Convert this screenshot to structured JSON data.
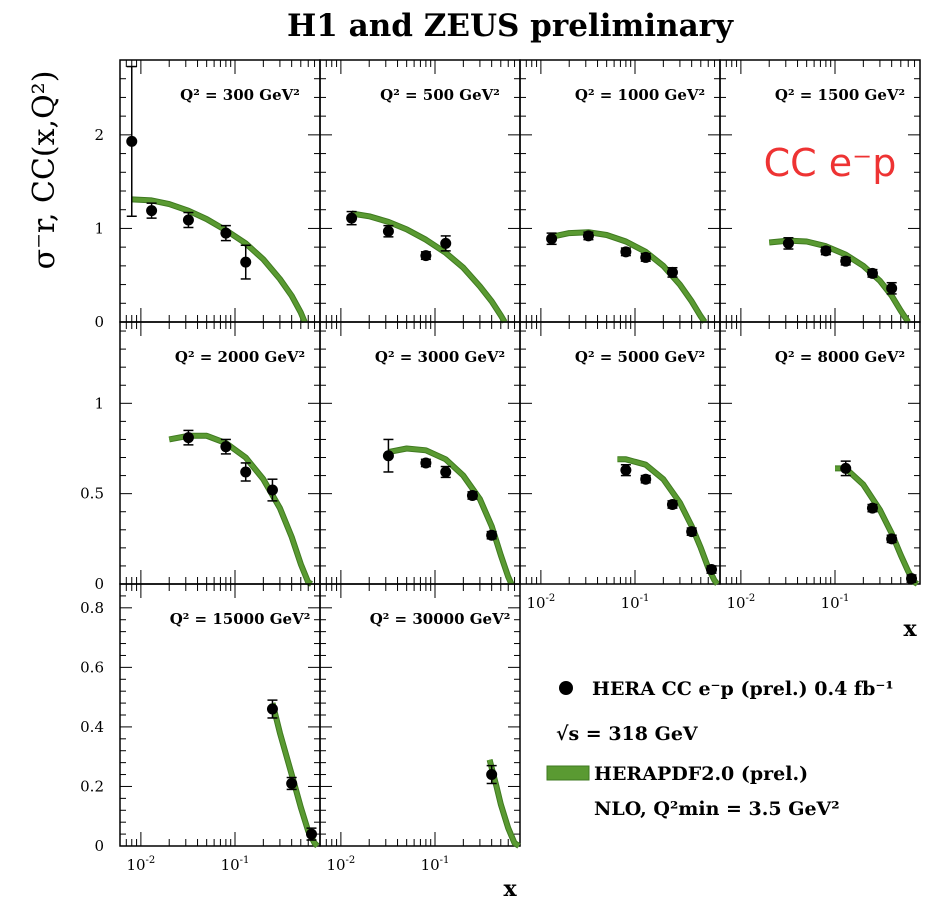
{
  "title": "H1 and ZEUS preliminary",
  "y_axis_label": "σ⁻r, CC(x,Q²)",
  "x_axis_label": "x",
  "process_label": "CC e⁻p",
  "legend": {
    "data_label": "HERA CC e⁻p (prel.) 0.4 fb⁻¹",
    "energy_label": "√s = 318 GeV",
    "fit_label": "HERAPDF2.0 (prel.)",
    "fit_sub_label": "NLO, Q²min = 3.5 GeV²"
  },
  "colors": {
    "fit": "#5a9a32",
    "fit_dark": "#3f7a20",
    "data": "#000000",
    "process_label": "#ee3333"
  },
  "chart_data": [
    {
      "type": "scatter",
      "q2_label": "Q² = 300 GeV²",
      "row": 0,
      "col": 0,
      "ylim": [
        0,
        2.8
      ],
      "xlim": [
        0.006,
        0.8
      ],
      "points": [
        [
          0.008,
          1.93,
          0.8
        ],
        [
          0.013,
          1.19,
          0.08
        ],
        [
          0.032,
          1.09,
          0.08
        ],
        [
          0.08,
          0.95,
          0.08
        ],
        [
          0.13,
          0.64,
          0.18
        ]
      ],
      "curve": [
        [
          0.008,
          1.31
        ],
        [
          0.013,
          1.3
        ],
        [
          0.02,
          1.26
        ],
        [
          0.032,
          1.19
        ],
        [
          0.05,
          1.1
        ],
        [
          0.08,
          0.98
        ],
        [
          0.13,
          0.84
        ],
        [
          0.2,
          0.67
        ],
        [
          0.3,
          0.46
        ],
        [
          0.4,
          0.28
        ],
        [
          0.5,
          0.1
        ],
        [
          0.55,
          0.0
        ]
      ]
    },
    {
      "type": "scatter",
      "q2_label": "Q² = 500 GeV²",
      "row": 0,
      "col": 1,
      "ylim": [
        0,
        2.8
      ],
      "xlim": [
        0.006,
        0.8
      ],
      "points": [
        [
          0.013,
          1.11,
          0.07
        ],
        [
          0.032,
          0.97,
          0.06
        ],
        [
          0.08,
          0.71,
          0.04
        ],
        [
          0.13,
          0.84,
          0.08
        ]
      ],
      "curve": [
        [
          0.013,
          1.16
        ],
        [
          0.02,
          1.13
        ],
        [
          0.032,
          1.07
        ],
        [
          0.05,
          0.99
        ],
        [
          0.08,
          0.88
        ],
        [
          0.13,
          0.74
        ],
        [
          0.2,
          0.58
        ],
        [
          0.3,
          0.38
        ],
        [
          0.4,
          0.22
        ],
        [
          0.5,
          0.07
        ],
        [
          0.55,
          0.0
        ]
      ]
    },
    {
      "type": "scatter",
      "q2_label": "Q² = 1000 GeV²",
      "row": 0,
      "col": 2,
      "ylim": [
        0,
        2.8
      ],
      "xlim": [
        0.006,
        0.8
      ],
      "points": [
        [
          0.013,
          0.89,
          0.06
        ],
        [
          0.032,
          0.92,
          0.04
        ],
        [
          0.08,
          0.75,
          0.04
        ],
        [
          0.13,
          0.69,
          0.04
        ],
        [
          0.25,
          0.53,
          0.05
        ]
      ],
      "curve": [
        [
          0.013,
          0.91
        ],
        [
          0.02,
          0.95
        ],
        [
          0.032,
          0.96
        ],
        [
          0.05,
          0.93
        ],
        [
          0.08,
          0.86
        ],
        [
          0.13,
          0.75
        ],
        [
          0.2,
          0.6
        ],
        [
          0.3,
          0.4
        ],
        [
          0.4,
          0.22
        ],
        [
          0.5,
          0.06
        ],
        [
          0.55,
          0.0
        ]
      ]
    },
    {
      "type": "scatter",
      "q2_label": "Q² = 1500 GeV²",
      "row": 0,
      "col": 3,
      "ylim": [
        0,
        2.8
      ],
      "xlim": [
        0.006,
        0.8
      ],
      "points": [
        [
          0.032,
          0.84,
          0.06
        ],
        [
          0.08,
          0.76,
          0.04
        ],
        [
          0.13,
          0.65,
          0.04
        ],
        [
          0.25,
          0.52,
          0.04
        ],
        [
          0.4,
          0.36,
          0.06
        ]
      ],
      "curve": [
        [
          0.02,
          0.85
        ],
        [
          0.032,
          0.87
        ],
        [
          0.05,
          0.86
        ],
        [
          0.08,
          0.81
        ],
        [
          0.13,
          0.72
        ],
        [
          0.2,
          0.6
        ],
        [
          0.3,
          0.44
        ],
        [
          0.4,
          0.28
        ],
        [
          0.5,
          0.12
        ],
        [
          0.6,
          0.0
        ]
      ]
    },
    {
      "type": "scatter",
      "q2_label": "Q² = 2000 GeV²",
      "row": 1,
      "col": 0,
      "ylim": [
        0,
        1.45
      ],
      "xlim": [
        0.006,
        0.8
      ],
      "points": [
        [
          0.032,
          0.81,
          0.04
        ],
        [
          0.08,
          0.76,
          0.04
        ],
        [
          0.13,
          0.62,
          0.05
        ],
        [
          0.25,
          0.52,
          0.06
        ]
      ],
      "curve": [
        [
          0.02,
          0.8
        ],
        [
          0.032,
          0.82
        ],
        [
          0.05,
          0.82
        ],
        [
          0.08,
          0.78
        ],
        [
          0.13,
          0.7
        ],
        [
          0.2,
          0.58
        ],
        [
          0.3,
          0.42
        ],
        [
          0.4,
          0.26
        ],
        [
          0.5,
          0.11
        ],
        [
          0.6,
          0.01
        ],
        [
          0.65,
          0.0
        ]
      ]
    },
    {
      "type": "scatter",
      "q2_label": "Q² = 3000 GeV²",
      "row": 1,
      "col": 1,
      "ylim": [
        0,
        1.45
      ],
      "xlim": [
        0.006,
        0.8
      ],
      "points": [
        [
          0.032,
          0.71,
          0.09
        ],
        [
          0.08,
          0.67,
          0.02
        ],
        [
          0.13,
          0.62,
          0.03
        ],
        [
          0.25,
          0.49,
          0.02
        ],
        [
          0.4,
          0.27,
          0.02
        ]
      ],
      "curve": [
        [
          0.032,
          0.73
        ],
        [
          0.05,
          0.75
        ],
        [
          0.08,
          0.74
        ],
        [
          0.13,
          0.69
        ],
        [
          0.2,
          0.6
        ],
        [
          0.3,
          0.47
        ],
        [
          0.4,
          0.32
        ],
        [
          0.5,
          0.16
        ],
        [
          0.6,
          0.04
        ],
        [
          0.65,
          0.0
        ]
      ]
    },
    {
      "type": "scatter",
      "q2_label": "Q² = 5000 GeV²",
      "row": 1,
      "col": 2,
      "ylim": [
        0,
        1.45
      ],
      "xlim": [
        0.006,
        0.8
      ],
      "points": [
        [
          0.08,
          0.63,
          0.03
        ],
        [
          0.13,
          0.58,
          0.02
        ],
        [
          0.25,
          0.44,
          0.02
        ],
        [
          0.4,
          0.29,
          0.02
        ],
        [
          0.65,
          0.08,
          0.02
        ]
      ],
      "curve": [
        [
          0.065,
          0.69
        ],
        [
          0.08,
          0.69
        ],
        [
          0.13,
          0.66
        ],
        [
          0.2,
          0.58
        ],
        [
          0.3,
          0.45
        ],
        [
          0.4,
          0.32
        ],
        [
          0.5,
          0.2
        ],
        [
          0.6,
          0.09
        ],
        [
          0.7,
          0.02
        ],
        [
          0.75,
          0.0
        ]
      ]
    },
    {
      "type": "scatter",
      "q2_label": "Q² = 8000 GeV²",
      "row": 1,
      "col": 3,
      "ylim": [
        0,
        1.45
      ],
      "xlim": [
        0.006,
        0.8
      ],
      "points": [
        [
          0.13,
          0.64,
          0.04
        ],
        [
          0.25,
          0.42,
          0.02
        ],
        [
          0.4,
          0.25,
          0.02
        ],
        [
          0.65,
          0.03,
          0.02
        ]
      ],
      "curve": [
        [
          0.1,
          0.64
        ],
        [
          0.13,
          0.64
        ],
        [
          0.2,
          0.55
        ],
        [
          0.3,
          0.41
        ],
        [
          0.4,
          0.28
        ],
        [
          0.5,
          0.16
        ],
        [
          0.6,
          0.07
        ],
        [
          0.7,
          0.01
        ],
        [
          0.75,
          0.0
        ]
      ]
    },
    {
      "type": "scatter",
      "q2_label": "Q² = 15000 GeV²",
      "row": 2,
      "col": 0,
      "ylim": [
        0,
        0.88
      ],
      "xlim": [
        0.006,
        0.8
      ],
      "points": [
        [
          0.25,
          0.46,
          0.03
        ],
        [
          0.4,
          0.21,
          0.02
        ],
        [
          0.65,
          0.04,
          0.02
        ]
      ],
      "curve": [
        [
          0.25,
          0.48
        ],
        [
          0.3,
          0.38
        ],
        [
          0.4,
          0.24
        ],
        [
          0.5,
          0.13
        ],
        [
          0.6,
          0.05
        ],
        [
          0.7,
          0.01
        ],
        [
          0.75,
          0.0
        ]
      ]
    },
    {
      "type": "scatter",
      "q2_label": "Q² = 30000 GeV²",
      "row": 2,
      "col": 1,
      "ylim": [
        0,
        0.88
      ],
      "xlim": [
        0.006,
        0.8
      ],
      "points": [
        [
          0.4,
          0.24,
          0.03
        ]
      ],
      "curve": [
        [
          0.38,
          0.29
        ],
        [
          0.45,
          0.2
        ],
        [
          0.5,
          0.14
        ],
        [
          0.6,
          0.06
        ],
        [
          0.7,
          0.01
        ],
        [
          0.78,
          0.0
        ]
      ]
    }
  ],
  "y_ticks": {
    "row0": [
      {
        "v": 0,
        "label": "0"
      },
      {
        "v": 1,
        "label": "1"
      },
      {
        "v": 2,
        "label": "2"
      }
    ],
    "row1": [
      {
        "v": 0,
        "label": "0"
      },
      {
        "v": 0.5,
        "label": "0.5"
      },
      {
        "v": 1,
        "label": "1"
      }
    ],
    "row2": [
      {
        "v": 0,
        "label": "0"
      },
      {
        "v": 0.2,
        "label": "0.2"
      },
      {
        "v": 0.4,
        "label": "0.4"
      },
      {
        "v": 0.6,
        "label": "0.6"
      },
      {
        "v": 0.8,
        "label": "0.8"
      }
    ]
  },
  "x_ticks": [
    {
      "v": 0.01,
      "label": "10",
      "exp": "-2"
    },
    {
      "v": 0.1,
      "label": "10",
      "exp": "-1"
    }
  ]
}
